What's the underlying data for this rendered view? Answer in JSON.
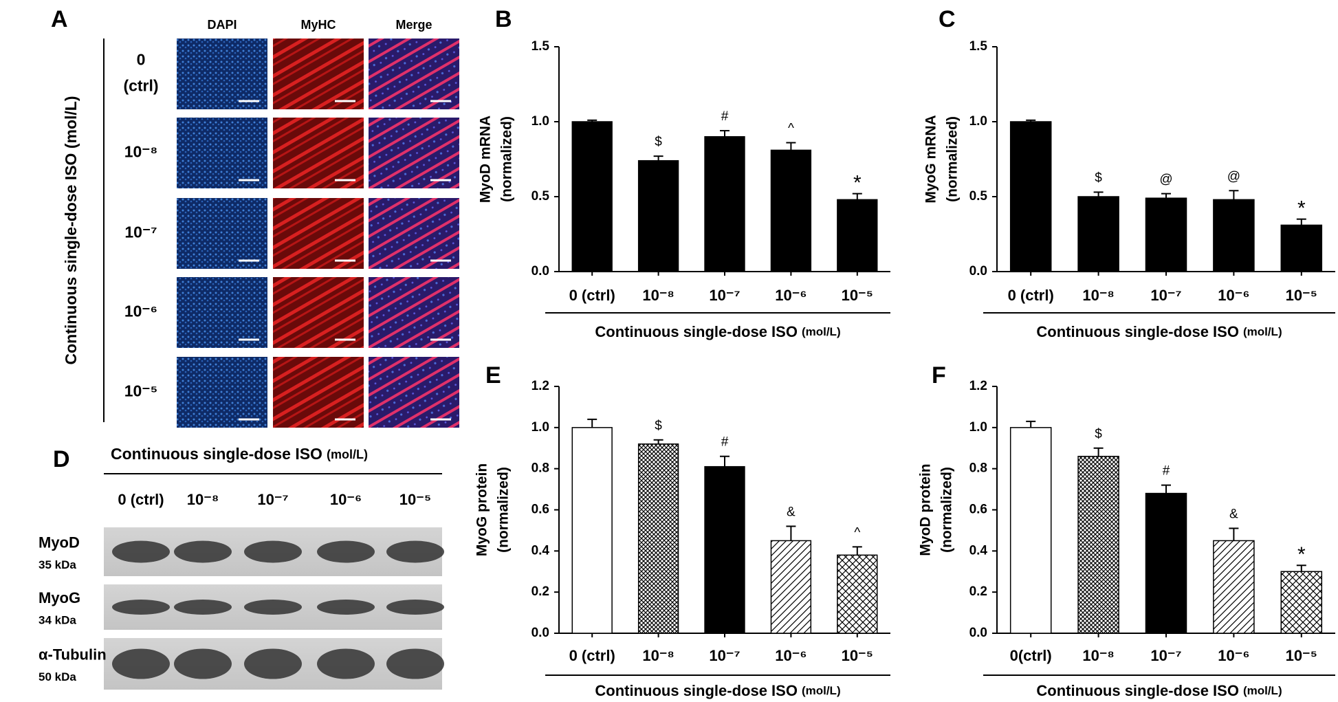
{
  "panel_a": {
    "label": "A",
    "row_axis_title": "Continuous single-dose ISO (mol/L)",
    "columns": [
      "DAPI",
      "MyHC",
      "Merge"
    ],
    "rows": [
      [
        "0",
        "(ctrl)"
      ],
      [
        "10⁻⁸"
      ],
      [
        "10⁻⁷"
      ],
      [
        "10⁻⁶"
      ],
      [
        "10⁻⁵"
      ]
    ]
  },
  "panel_d": {
    "label": "D",
    "title": "Continuous single-dose ISO",
    "title_unit": "(mol/L)",
    "lanes": [
      "0 (ctrl)",
      "10⁻⁸",
      "10⁻⁷",
      "10⁻⁶",
      "10⁻⁵"
    ],
    "blots": [
      {
        "name": "MyoD",
        "size": "35 kDa"
      },
      {
        "name": "MyoG",
        "size": "34 kDa"
      },
      {
        "name": "α-Tubulin",
        "size": "50 kDa"
      }
    ]
  },
  "chart_data": [
    {
      "panel": "B",
      "type": "bar",
      "ylabel": [
        "MyoD mRNA",
        "(normalized)"
      ],
      "xlabel": "Continuous single-dose ISO",
      "xlabel_unit": "(mol/L)",
      "categories": [
        "0 (ctrl)",
        "10⁻⁸",
        "10⁻⁷",
        "10⁻⁶",
        "10⁻⁵"
      ],
      "values": [
        1.0,
        0.74,
        0.9,
        0.81,
        0.48
      ],
      "errors": [
        0.01,
        0.03,
        0.04,
        0.05,
        0.04
      ],
      "annotations": [
        null,
        "$",
        "#",
        "^",
        "*"
      ],
      "fills": [
        "#000000",
        "#000000",
        "#000000",
        "#000000",
        "#000000"
      ],
      "ylim": [
        0,
        1.5
      ],
      "yticks": [
        {
          "value": 0,
          "label": "0.0"
        },
        0.5,
        {
          "value": 1,
          "label": "1.0"
        },
        1.5
      ]
    },
    {
      "panel": "C",
      "type": "bar",
      "ylabel": [
        "MyoG mRNA",
        "(normalized)"
      ],
      "xlabel": "Continuous single-dose ISO",
      "xlabel_unit": "(mol/L)",
      "categories": [
        "0 (ctrl)",
        "10⁻⁸",
        "10⁻⁷",
        "10⁻⁶",
        "10⁻⁵"
      ],
      "values": [
        1.0,
        0.5,
        0.49,
        0.48,
        0.31
      ],
      "errors": [
        0.01,
        0.03,
        0.03,
        0.06,
        0.04
      ],
      "annotations": [
        null,
        "$",
        "@",
        "@",
        "*"
      ],
      "fills": [
        "#000000",
        "#000000",
        "#000000",
        "#000000",
        "#000000"
      ],
      "ylim": [
        0,
        1.5
      ],
      "yticks": [
        {
          "value": 0,
          "label": "0.0"
        },
        0.5,
        {
          "value": 1,
          "label": "1.0"
        },
        1.5
      ]
    },
    {
      "panel": "E",
      "type": "bar",
      "ylabel": [
        "MyoG protein",
        "(normalized)"
      ],
      "xlabel": "Continuous single-dose ISO",
      "xlabel_unit": "(mol/L)",
      "categories": [
        "0 (ctrl)",
        "10⁻⁸",
        "10⁻⁷",
        "10⁻⁶",
        "10⁻⁵"
      ],
      "values": [
        1.0,
        0.92,
        0.81,
        0.45,
        0.38
      ],
      "errors": [
        0.04,
        0.02,
        0.05,
        0.07,
        0.04
      ],
      "annotations": [
        null,
        "$",
        "#",
        "&",
        "^"
      ],
      "fills": [
        "#ffffff",
        "checker",
        "#000000",
        "diagonal",
        "crosshatch"
      ],
      "ylim": [
        0,
        1.2
      ],
      "yticks": [
        {
          "value": 0,
          "label": "0.0"
        },
        0.2,
        0.4,
        0.6,
        0.8,
        {
          "value": 1,
          "label": "1.0"
        },
        1.2
      ]
    },
    {
      "panel": "F",
      "type": "bar",
      "ylabel": [
        "MyoD protein",
        "(normalized)"
      ],
      "xlabel": "Continuous single-dose ISO",
      "xlabel_unit": "(mol/L)",
      "categories": [
        "0(ctrl)",
        "10⁻⁸",
        "10⁻⁷",
        "10⁻⁶",
        "10⁻⁵"
      ],
      "values": [
        1.0,
        0.86,
        0.68,
        0.45,
        0.3
      ],
      "errors": [
        0.03,
        0.04,
        0.04,
        0.06,
        0.03
      ],
      "annotations": [
        null,
        "$",
        "#",
        "&",
        "*"
      ],
      "fills": [
        "#ffffff",
        "checker",
        "#000000",
        "diagonal",
        "crosshatch"
      ],
      "ylim": [
        0,
        1.2
      ],
      "yticks": [
        {
          "value": 0,
          "label": "0.0"
        },
        0.2,
        0.4,
        0.6,
        0.8,
        {
          "value": 1,
          "label": "1.0"
        },
        1.2
      ]
    }
  ]
}
